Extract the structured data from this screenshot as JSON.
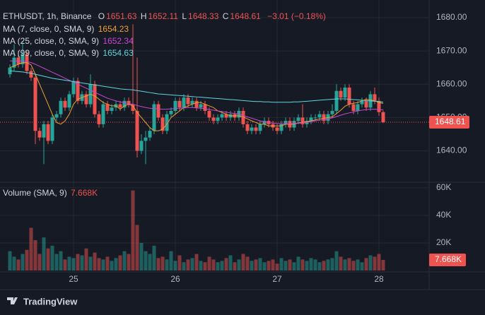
{
  "chart_data": {
    "type": "candlestick",
    "title": "ETHUSDT, 1h, Binance",
    "ohlc_labels": [
      "O",
      "H",
      "L",
      "C"
    ],
    "change": "−3.01 (−0.18%)",
    "up_color": "#26a69a",
    "down_color": "#ef5350",
    "categories": [
      null,
      null,
      null,
      null,
      null,
      null,
      null,
      null,
      null,
      null,
      null,
      null,
      null,
      null,
      null,
      "25",
      null,
      null,
      null,
      null,
      null,
      null,
      null,
      null,
      null,
      null,
      null,
      null,
      null,
      null,
      null,
      null,
      null,
      null,
      null,
      null,
      null,
      null,
      null,
      "26",
      null,
      null,
      null,
      null,
      null,
      null,
      null,
      null,
      null,
      null,
      null,
      null,
      null,
      null,
      null,
      null,
      null,
      null,
      null,
      null,
      null,
      null,
      null,
      "27",
      null,
      null,
      null,
      null,
      null,
      null,
      null,
      null,
      null,
      null,
      null,
      null,
      null,
      null,
      null,
      null,
      null,
      null,
      null,
      null,
      null,
      null,
      null,
      "28",
      null
    ],
    "open": [
      1663,
      1665,
      1668,
      1666,
      1669,
      1664,
      1662,
      1646,
      1644,
      1648,
      1643,
      1650,
      1651,
      1655,
      1653,
      1657,
      1661,
      1655,
      1657,
      1654,
      1660,
      1651,
      1648,
      1654,
      1652,
      1653,
      1654,
      1653,
      1655,
      1654,
      1652,
      1640,
      1643,
      1644,
      1646,
      1654,
      1650,
      1646,
      1651,
      1652,
      1655,
      1653,
      1656,
      1654,
      1655,
      1653,
      1654,
      1652,
      1650,
      1649,
      1650,
      1651,
      1650,
      1651,
      1650,
      1652,
      1648,
      1646,
      1647,
      1646,
      1648,
      1649,
      1648,
      1647,
      1646,
      1648,
      1649,
      1647,
      1649,
      1650,
      1648,
      1649,
      1650,
      1650,
      1651,
      1649,
      1651,
      1652,
      1658,
      1656,
      1659,
      1654,
      1652,
      1654,
      1655,
      1653,
      1657,
      1655,
      1651.63
    ],
    "high": [
      1666,
      1672,
      1670,
      1673,
      1670,
      1665,
      1663,
      1647,
      1649,
      1649,
      1651,
      1652,
      1656,
      1656,
      1658,
      1662,
      1662,
      1658,
      1658,
      1663,
      1661,
      1652,
      1655,
      1655,
      1654,
      1655,
      1655,
      1656,
      1656,
      1678,
      1668,
      1645,
      1646,
      1647,
      1655,
      1655,
      1651,
      1652,
      1653,
      1656,
      1656,
      1657,
      1657,
      1656,
      1656,
      1655,
      1655,
      1653,
      1651,
      1651,
      1652,
      1652,
      1652,
      1652,
      1653,
      1653,
      1649,
      1648,
      1648,
      1649,
      1650,
      1650,
      1649,
      1648,
      1649,
      1650,
      1650,
      1650,
      1651,
      1654,
      1650,
      1651,
      1651,
      1652,
      1652,
      1652,
      1654,
      1660,
      1659,
      1660,
      1660,
      1655,
      1655,
      1656,
      1656,
      1658,
      1659,
      1656,
      1652.11
    ],
    "low": [
      1662,
      1664,
      1665,
      1665,
      1663,
      1661,
      1642,
      1643,
      1636,
      1642,
      1642,
      1649,
      1650,
      1652,
      1652,
      1656,
      1654,
      1654,
      1653,
      1653,
      1650,
      1647,
      1647,
      1651,
      1651,
      1652,
      1652,
      1652,
      1653,
      1651,
      1638,
      1639,
      1636,
      1643,
      1645,
      1649,
      1645,
      1645,
      1650,
      1651,
      1652,
      1652,
      1653,
      1653,
      1652,
      1652,
      1651,
      1649,
      1648,
      1648,
      1649,
      1649,
      1649,
      1649,
      1649,
      1647,
      1645,
      1645,
      1645,
      1645,
      1647,
      1647,
      1646,
      1645,
      1645,
      1647,
      1646,
      1646,
      1648,
      1647,
      1647,
      1648,
      1649,
      1649,
      1648,
      1648,
      1650,
      1651,
      1655,
      1655,
      1653,
      1651,
      1651,
      1653,
      1652,
      1652,
      1654,
      1650.5,
      1648.33
    ],
    "close": [
      1665,
      1668,
      1666,
      1669,
      1664,
      1662,
      1646,
      1644,
      1648,
      1643,
      1650,
      1651,
      1655,
      1653,
      1657,
      1661,
      1655,
      1657,
      1654,
      1660,
      1651,
      1648,
      1654,
      1652,
      1653,
      1654,
      1653,
      1655,
      1654,
      1652,
      1640,
      1643,
      1644,
      1646,
      1654,
      1650,
      1646,
      1651,
      1652,
      1655,
      1653,
      1656,
      1654,
      1655,
      1653,
      1654,
      1652,
      1650,
      1649,
      1650,
      1651,
      1650,
      1651,
      1650,
      1652,
      1648,
      1646,
      1647,
      1646,
      1648,
      1649,
      1648,
      1647,
      1646,
      1648,
      1649,
      1647,
      1649,
      1650,
      1648,
      1649,
      1650,
      1650,
      1651,
      1649,
      1651,
      1652,
      1658,
      1656,
      1659,
      1654,
      1652,
      1654,
      1655,
      1653,
      1657,
      1655,
      1651.63,
      1648.61
    ],
    "ylim": [
      1631,
      1683.6
    ],
    "yticks": [
      {
        "value": 1640,
        "label": "1640.00"
      },
      {
        "value": 1650,
        "label": "1650.00"
      },
      {
        "value": 1660,
        "label": "1660.00"
      },
      {
        "value": 1670,
        "label": "1670.00"
      },
      {
        "value": 1680,
        "label": "1680.00"
      }
    ],
    "series": [
      {
        "name": "MA (7, close, 0, SMA, 9)",
        "color": "#f0a030",
        "values": [
          1665,
          1665.5,
          1666,
          1666.5,
          1666.5,
          1665.8,
          1663,
          1660,
          1657,
          1654,
          1651,
          1648.5,
          1648,
          1649,
          1651,
          1654,
          1655.5,
          1656,
          1656.5,
          1657,
          1656.5,
          1655.5,
          1654.5,
          1654,
          1653.5,
          1653.5,
          1652.5,
          1653.5,
          1654,
          1653.5,
          1651.5,
          1650,
          1648.5,
          1647,
          1646,
          1646,
          1646.5,
          1648,
          1650,
          1651,
          1652,
          1653,
          1653.5,
          1654,
          1654.5,
          1654.5,
          1654,
          1653.5,
          1653,
          1652,
          1651.5,
          1651,
          1650.5,
          1650.5,
          1650.5,
          1650.2,
          1649.6,
          1649,
          1648.5,
          1648,
          1648,
          1647.5,
          1647.5,
          1647.5,
          1647.5,
          1648,
          1648,
          1648,
          1648.4,
          1648.6,
          1648.8,
          1649,
          1649.3,
          1649.6,
          1649.8,
          1650,
          1650.2,
          1651.2,
          1652.2,
          1653.4,
          1654,
          1654.3,
          1654.5,
          1655,
          1655.5,
          1655.3,
          1655,
          1654.5,
          1654.23
        ]
      },
      {
        "name": "MA (25, close, 0, SMA, 9)",
        "color": "#c847d0",
        "values": [
          1667,
          1667,
          1667,
          1667,
          1666.8,
          1666.5,
          1666,
          1665.4,
          1664.8,
          1664.2,
          1663.6,
          1663,
          1662.4,
          1661.8,
          1661.2,
          1660.6,
          1660,
          1659.4,
          1658.8,
          1658.2,
          1657.6,
          1657,
          1656.4,
          1655.8,
          1655.4,
          1655,
          1654.7,
          1654.4,
          1654.2,
          1654,
          1653.6,
          1653.3,
          1653,
          1652.8,
          1652.7,
          1652.6,
          1652.5,
          1652.5,
          1652.6,
          1652.7,
          1652.8,
          1652.9,
          1653,
          1653,
          1652.9,
          1652.8,
          1652.6,
          1652.4,
          1652.2,
          1652,
          1651.8,
          1651.6,
          1651.4,
          1651.2,
          1651,
          1650.6,
          1650.2,
          1649.8,
          1649.4,
          1649,
          1648.7,
          1648.5,
          1648.3,
          1648.2,
          1648.1,
          1648.1,
          1648.1,
          1648.2,
          1648.3,
          1648.4,
          1648.6,
          1648.8,
          1649,
          1649.2,
          1649.4,
          1649.6,
          1649.9,
          1650.3,
          1650.7,
          1651.1,
          1651.4,
          1651.7,
          1652,
          1652.2,
          1652.4,
          1652.5,
          1652.5,
          1652.4,
          1652.34
        ]
      },
      {
        "name": "MA (99, close, 0, SMA, 9)",
        "color": "#5fd6dc",
        "values": [
          1664,
          1663.9,
          1663.8,
          1663.7,
          1663.5,
          1663.3,
          1663,
          1662.7,
          1662.4,
          1662.1,
          1661.8,
          1661.6,
          1661.4,
          1661.2,
          1661,
          1660.8,
          1660.6,
          1660.4,
          1660.2,
          1660,
          1659.8,
          1659.6,
          1659.4,
          1659.2,
          1659,
          1658.8,
          1658.6,
          1658.5,
          1658.4,
          1658.3,
          1658.1,
          1657.9,
          1657.7,
          1657.5,
          1657.3,
          1657.1,
          1657,
          1656.9,
          1656.8,
          1656.7,
          1656.6,
          1656.5,
          1656.4,
          1656.3,
          1656.2,
          1656.1,
          1656,
          1655.9,
          1655.8,
          1655.7,
          1655.6,
          1655.5,
          1655.4,
          1655.3,
          1655.2,
          1655.1,
          1655,
          1654.9,
          1654.8,
          1654.8,
          1654.7,
          1654.7,
          1654.6,
          1654.6,
          1654.6,
          1654.6,
          1654.6,
          1654.7,
          1654.7,
          1654.8,
          1654.9,
          1655,
          1655.1,
          1655.2,
          1655.3,
          1655.4,
          1655.5,
          1655.6,
          1655.6,
          1655.6,
          1655.5,
          1655.4,
          1655.3,
          1655.2,
          1655.1,
          1655,
          1654.9,
          1654.8,
          1654.63
        ]
      }
    ],
    "volume": {
      "title": "Volume (SMA, 9)",
      "values": [
        14,
        10,
        8,
        12,
        15,
        31,
        22,
        12,
        24,
        16,
        18,
        12,
        14,
        8,
        10,
        9,
        12,
        11,
        16,
        10,
        13,
        9,
        8,
        10,
        7,
        9,
        11,
        14,
        12,
        58,
        33,
        20,
        14,
        12,
        18,
        9,
        10,
        8,
        14,
        7,
        11,
        6,
        8,
        9,
        12,
        7,
        6,
        10,
        8,
        6,
        7,
        9,
        11,
        6,
        8,
        12,
        10,
        7,
        8,
        9,
        6,
        7,
        8,
        5,
        9,
        7,
        8,
        6,
        10,
        8,
        7,
        9,
        8,
        6,
        7,
        8,
        9,
        14,
        10,
        8,
        9,
        7,
        8,
        6,
        9,
        11,
        10,
        12,
        7.668
      ],
      "value_labels": {
        "88": "7.668K"
      },
      "ylim": [
        0,
        64
      ],
      "yticks": [
        {
          "value": 20,
          "label": "20K"
        },
        {
          "value": 40,
          "label": "40K"
        },
        {
          "value": 60,
          "label": "60K"
        }
      ]
    },
    "brand": "TradingView"
  }
}
